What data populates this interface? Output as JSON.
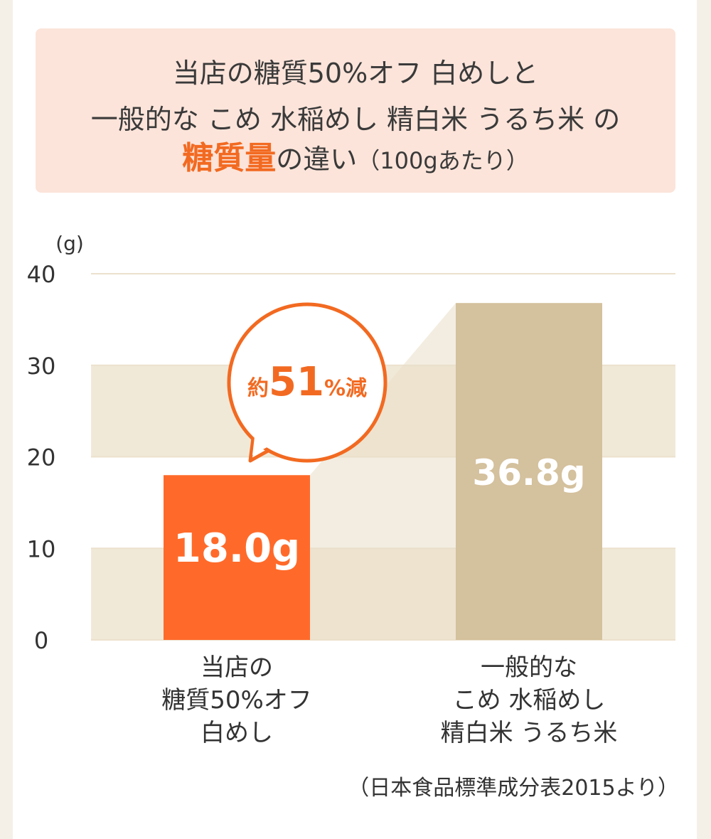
{
  "title": {
    "line1": "当店の糖質50%オフ 白めしと",
    "line2": "一般的な こめ 水稲めし 精白米 うるち米 の",
    "line3_highlight": "糖質量",
    "line3_rest": "の違い",
    "line3_note": "（100gあたり）"
  },
  "chart_data": {
    "type": "bar",
    "ylabel": "(g)",
    "ylim": [
      0,
      40
    ],
    "yticks": [
      0,
      10,
      20,
      30,
      40
    ],
    "categories": [
      [
        "当店の",
        "糖質50%オフ",
        "白めし"
      ],
      [
        "一般的な",
        "こめ 水稲めし",
        "精白米 うるち米"
      ]
    ],
    "values": [
      18.0,
      36.8
    ],
    "value_labels": [
      "18.0g",
      "36.8g"
    ],
    "bar_colors": [
      "#ff6a2a",
      "#d4c19d"
    ],
    "annotation": {
      "prefix": "約",
      "number": "51",
      "suffix": "%減"
    },
    "grid": true,
    "source": "（日本食品標準成分表2015より）"
  },
  "colors": {
    "accent": "#f26a21",
    "band": "#f1e9d8",
    "grid": "#ece1cd"
  }
}
